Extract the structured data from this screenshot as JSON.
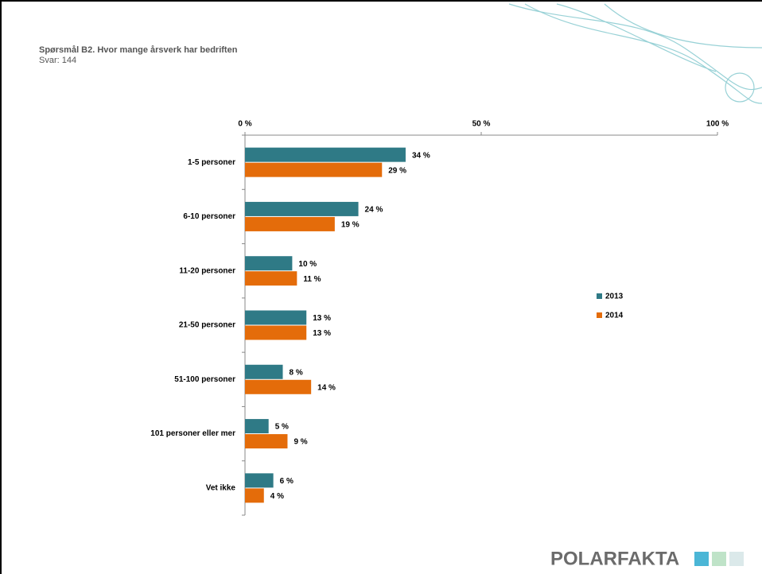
{
  "chart_data": {
    "type": "bar",
    "orientation": "horizontal",
    "title": "Spørsmål B2. Hvor mange årsverk har bedriften",
    "subtitle": "Svar: 144",
    "categories": [
      "1-5 personer",
      "6-10 personer",
      "11-20 personer",
      "21-50 personer",
      "51-100 personer",
      "101 personer eller mer",
      "Vet ikke"
    ],
    "series": [
      {
        "name": "2013",
        "color": "#2f7a86",
        "values": [
          34,
          24,
          10,
          13,
          8,
          5,
          6
        ],
        "value_labels": [
          "34 %",
          "24 %",
          "10 %",
          "13 %",
          "8 %",
          "5 %",
          "6 %"
        ]
      },
      {
        "name": "2014",
        "color": "#e46c0a",
        "values": [
          29,
          19,
          11,
          13,
          14,
          9,
          4
        ],
        "value_labels": [
          "29 %",
          "19 %",
          "11 %",
          "13 %",
          "14 %",
          "9 %",
          "4 %"
        ]
      }
    ],
    "xlim": [
      0,
      100
    ],
    "xticks": [
      {
        "value": 0,
        "label": "0 %"
      },
      {
        "value": 50,
        "label": "50 %"
      },
      {
        "value": 100,
        "label": "100 %"
      }
    ],
    "legend": "right"
  },
  "logo": "POLARFAKTA"
}
